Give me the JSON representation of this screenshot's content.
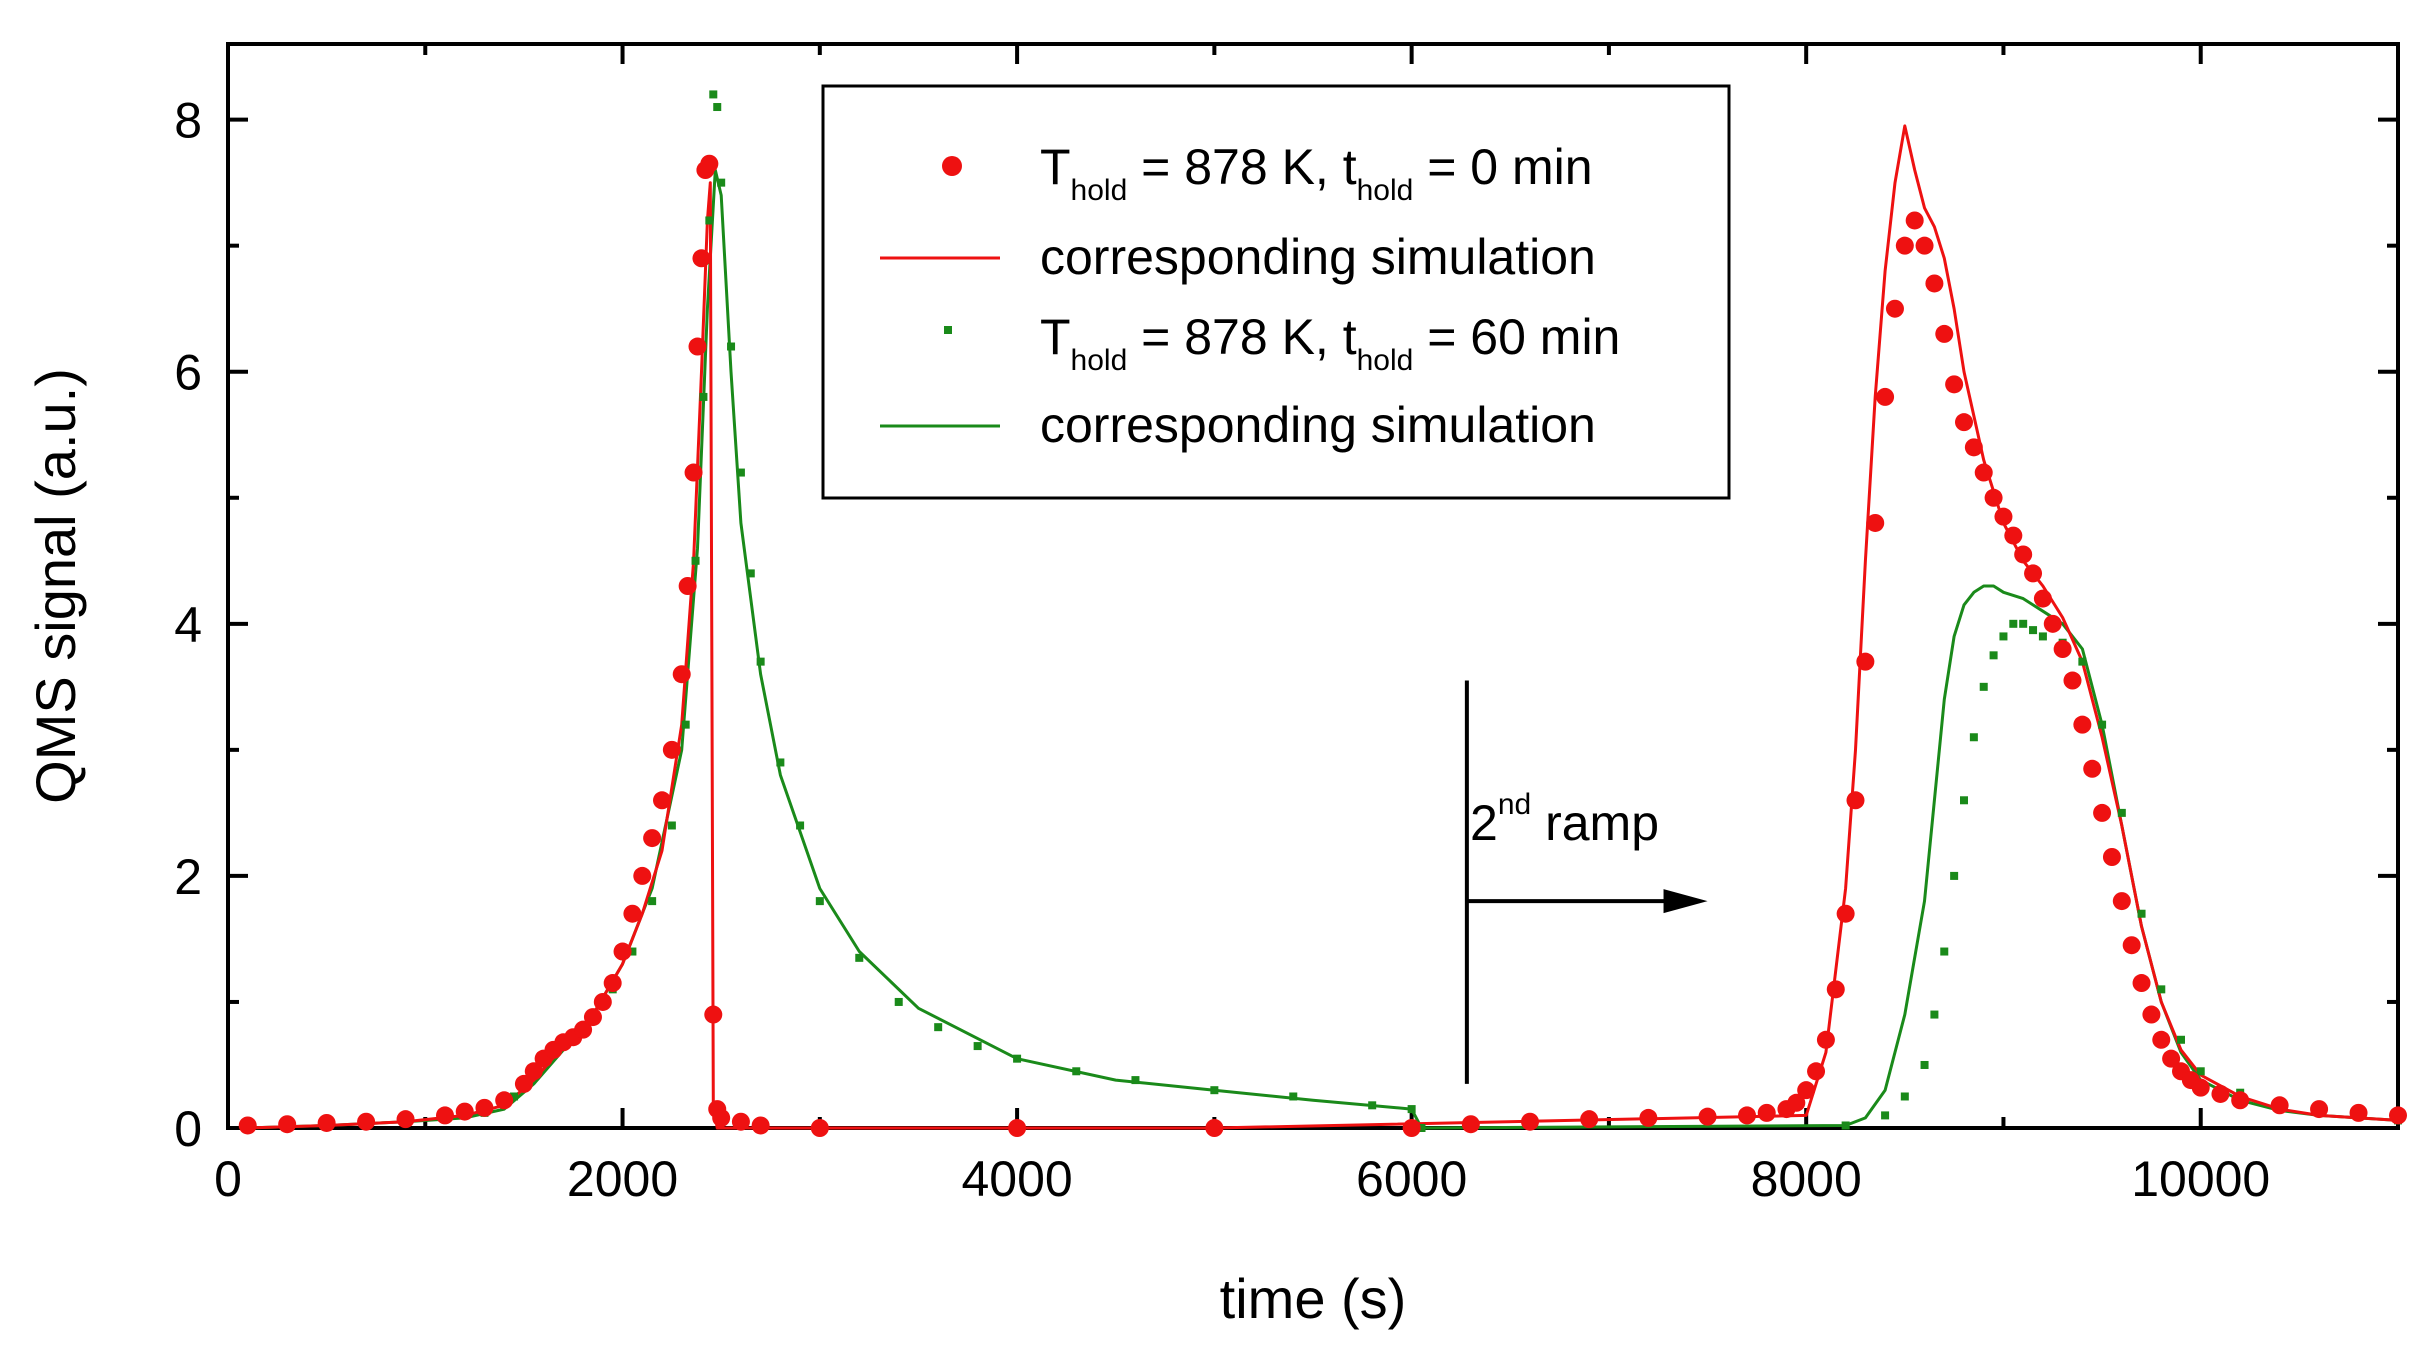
{
  "chart_data": {
    "type": "scatter",
    "xlabel": "time (s)",
    "ylabel": "QMS signal (a.u.)",
    "xlim": [
      0,
      11000
    ],
    "ylim": [
      0,
      8.6
    ],
    "xticks": [
      0,
      2000,
      4000,
      6000,
      8000,
      10000
    ],
    "yticks": [
      0,
      2,
      4,
      6,
      8
    ],
    "grid": false,
    "legend_position": "top-center",
    "legend": [
      {
        "main": "T",
        "sub": "hold",
        "mid": " = 878 K, t",
        "sub2": "hold",
        "tail": " = 0 min"
      },
      {
        "text": "corresponding simulation"
      },
      {
        "main": "T",
        "sub": "hold",
        "mid": " = 878 K, t",
        "sub2": "hold",
        "tail": " = 60 min"
      },
      {
        "text": "corresponding simulation"
      }
    ],
    "annotation": {
      "text": "2",
      "sup": "nd",
      "tail": " ramp",
      "line_x": 6280,
      "line_y": [
        0.35,
        3.55
      ],
      "arrow_y": 1.8,
      "arrow_x": [
        6280,
        7500
      ]
    },
    "series": [
      {
        "style": "dots",
        "color": "#ee1111",
        "x": [
          100,
          300,
          500,
          700,
          900,
          1100,
          1200,
          1300,
          1400,
          1500,
          1550,
          1600,
          1650,
          1700,
          1750,
          1800,
          1850,
          1900,
          1950,
          2000,
          2050,
          2100,
          2150,
          2200,
          2250,
          2300,
          2330,
          2360,
          2380,
          2400,
          2420,
          2440,
          2460,
          2480,
          2500,
          2600,
          2700,
          3000,
          4000,
          5000,
          6000,
          6300,
          6600,
          6900,
          7200,
          7500,
          7700,
          7800,
          7900,
          7950,
          8000,
          8050,
          8100,
          8150,
          8200,
          8250,
          8300,
          8350,
          8400,
          8450,
          8500,
          8550,
          8600,
          8650,
          8700,
          8750,
          8800,
          8850,
          8900,
          8950,
          9000,
          9050,
          9100,
          9150,
          9200,
          9250,
          9300,
          9350,
          9400,
          9450,
          9500,
          9550,
          9600,
          9650,
          9700,
          9750,
          9800,
          9850,
          9900,
          9950,
          10000,
          10100,
          10200,
          10400,
          10600,
          10800,
          11000
        ],
        "y": [
          0.02,
          0.03,
          0.04,
          0.05,
          0.07,
          0.1,
          0.13,
          0.16,
          0.22,
          0.35,
          0.45,
          0.55,
          0.62,
          0.68,
          0.72,
          0.78,
          0.88,
          1.0,
          1.15,
          1.4,
          1.7,
          2.0,
          2.3,
          2.6,
          3.0,
          3.6,
          4.3,
          5.2,
          6.2,
          6.9,
          7.6,
          7.65,
          0.9,
          0.15,
          0.08,
          0.05,
          0.02,
          0.0,
          0.0,
          0.0,
          0.0,
          0.03,
          0.05,
          0.07,
          0.08,
          0.09,
          0.1,
          0.12,
          0.15,
          0.2,
          0.3,
          0.45,
          0.7,
          1.1,
          1.7,
          2.6,
          3.7,
          4.8,
          5.8,
          6.5,
          7.0,
          7.2,
          7.0,
          6.7,
          6.3,
          5.9,
          5.6,
          5.4,
          5.2,
          5.0,
          4.85,
          4.7,
          4.55,
          4.4,
          4.2,
          4.0,
          3.8,
          3.55,
          3.2,
          2.85,
          2.5,
          2.15,
          1.8,
          1.45,
          1.15,
          0.9,
          0.7,
          0.55,
          0.45,
          0.38,
          0.32,
          0.27,
          0.22,
          0.18,
          0.15,
          0.12,
          0.1
        ]
      },
      {
        "style": "line",
        "color": "#ee1111",
        "x": [
          100,
          500,
          900,
          1200,
          1400,
          1550,
          1700,
          1850,
          2000,
          2100,
          2200,
          2300,
          2360,
          2400,
          2430,
          2445,
          2460,
          2480,
          2600,
          3000,
          5000,
          8000,
          8100,
          8200,
          8250,
          8300,
          8350,
          8400,
          8450,
          8500,
          8550,
          8600,
          8650,
          8700,
          8750,
          8800,
          8900,
          9000,
          9100,
          9200,
          9300,
          9400,
          9500,
          9600,
          9700,
          9800,
          9900,
          10000,
          10200,
          10400,
          10600,
          10800,
          11000
        ],
        "y": [
          0.0,
          0.02,
          0.05,
          0.1,
          0.18,
          0.38,
          0.65,
          0.9,
          1.3,
          1.7,
          2.2,
          3.2,
          4.5,
          6.0,
          7.2,
          7.5,
          0.2,
          0.0,
          0.0,
          0.0,
          0.0,
          0.1,
          0.6,
          1.9,
          3.0,
          4.5,
          5.8,
          6.8,
          7.5,
          7.95,
          7.6,
          7.3,
          7.15,
          6.9,
          6.5,
          6.0,
          5.3,
          4.8,
          4.5,
          4.3,
          4.05,
          3.7,
          3.1,
          2.4,
          1.6,
          1.0,
          0.62,
          0.42,
          0.25,
          0.15,
          0.1,
          0.08,
          0.06
        ]
      },
      {
        "style": "squares",
        "color": "#1a8a1a",
        "x": [
          100,
          300,
          500,
          700,
          900,
          1100,
          1300,
          1450,
          1550,
          1650,
          1750,
          1850,
          1950,
          2050,
          2150,
          2250,
          2320,
          2370,
          2410,
          2440,
          2460,
          2480,
          2500,
          2550,
          2600,
          2650,
          2700,
          2800,
          2900,
          3000,
          3200,
          3400,
          3600,
          3800,
          4000,
          4300,
          4600,
          5000,
          5400,
          5800,
          6000,
          6050,
          8200,
          8400,
          8500,
          8600,
          8650,
          8700,
          8750,
          8800,
          8850,
          8900,
          8950,
          9000,
          9050,
          9100,
          9150,
          9200,
          9300,
          9400,
          9500,
          9600,
          9700,
          9800,
          9900,
          10000,
          10200,
          10400,
          10600,
          10800,
          11000
        ],
        "y": [
          0.0,
          0.01,
          0.02,
          0.03,
          0.05,
          0.08,
          0.12,
          0.25,
          0.42,
          0.6,
          0.75,
          0.9,
          1.1,
          1.4,
          1.8,
          2.4,
          3.2,
          4.5,
          5.8,
          7.2,
          8.2,
          8.1,
          7.5,
          6.2,
          5.2,
          4.4,
          3.7,
          2.9,
          2.4,
          1.8,
          1.35,
          1.0,
          0.8,
          0.65,
          0.55,
          0.45,
          0.38,
          0.3,
          0.25,
          0.18,
          0.15,
          0.0,
          0.02,
          0.1,
          0.25,
          0.5,
          0.9,
          1.4,
          2.0,
          2.6,
          3.1,
          3.5,
          3.75,
          3.9,
          4.0,
          4.0,
          3.95,
          3.9,
          3.85,
          3.7,
          3.2,
          2.5,
          1.7,
          1.1,
          0.7,
          0.45,
          0.28,
          0.18,
          0.12,
          0.09,
          0.06
        ]
      },
      {
        "style": "line",
        "color": "#1a8a1a",
        "x": [
          100,
          500,
          900,
          1200,
          1400,
          1550,
          1700,
          1850,
          2000,
          2150,
          2300,
          2380,
          2430,
          2470,
          2500,
          2550,
          2600,
          2700,
          2800,
          3000,
          3200,
          3500,
          4000,
          4500,
          5000,
          5500,
          6000,
          6050,
          8200,
          8300,
          8400,
          8500,
          8600,
          8650,
          8700,
          8750,
          8800,
          8850,
          8900,
          8950,
          9000,
          9100,
          9200,
          9300,
          9400,
          9500,
          9600,
          9700,
          9800,
          9900,
          10000,
          10200,
          10400,
          10600,
          10800,
          11000
        ],
        "y": [
          0.0,
          0.02,
          0.05,
          0.08,
          0.15,
          0.35,
          0.62,
          0.9,
          1.3,
          1.9,
          3.0,
          4.6,
          6.5,
          7.6,
          7.4,
          6.0,
          4.8,
          3.6,
          2.8,
          1.9,
          1.4,
          0.95,
          0.55,
          0.38,
          0.3,
          0.22,
          0.15,
          0.0,
          0.02,
          0.08,
          0.3,
          0.9,
          1.8,
          2.6,
          3.4,
          3.9,
          4.15,
          4.25,
          4.3,
          4.3,
          4.25,
          4.2,
          4.1,
          4.0,
          3.8,
          3.2,
          2.4,
          1.6,
          1.0,
          0.6,
          0.38,
          0.22,
          0.14,
          0.1,
          0.08,
          0.06
        ]
      }
    ]
  }
}
